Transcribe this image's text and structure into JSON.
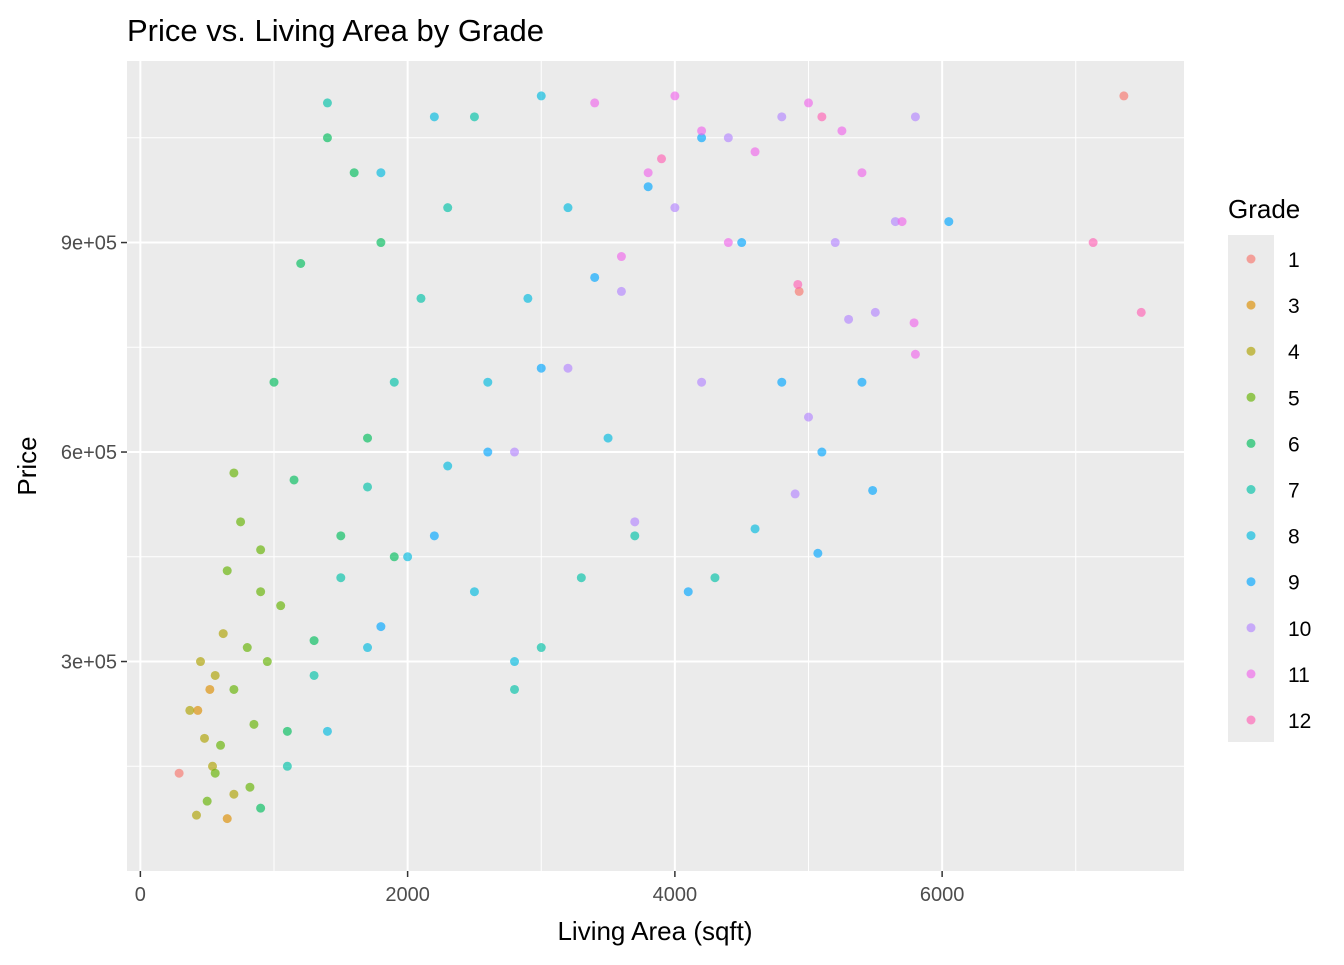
{
  "chart_data": {
    "type": "scatter",
    "title": "Price vs. Living Area by Grade",
    "xlabel": "Living Area (sqft)",
    "ylabel": "Price",
    "xlim": [
      -100,
      7810
    ],
    "ylim": [
      0,
      1160000
    ],
    "x_ticks": [
      0,
      2000,
      4000,
      6000
    ],
    "x_tick_labels": [
      "0",
      "2000",
      "4000",
      "6000"
    ],
    "y_ticks": [
      300000,
      600000,
      900000
    ],
    "y_tick_labels": [
      "3e+05",
      "6e+05",
      "9e+05"
    ],
    "grid": true,
    "legend": {
      "title": "Grade",
      "position": "right",
      "entries": [
        "1",
        "3",
        "4",
        "5",
        "6",
        "7",
        "8",
        "9",
        "10",
        "11",
        "12"
      ]
    },
    "series": [
      {
        "name": "1",
        "color": "#F8766D",
        "x": [
          290,
          4930,
          7360
        ],
        "y": [
          140000,
          830000,
          1110000
        ]
      },
      {
        "name": "3",
        "color": "#DB8E00",
        "x": [
          520,
          430,
          650
        ],
        "y": [
          260000,
          230000,
          75000
        ]
      },
      {
        "name": "4",
        "color": "#AEA200",
        "x": [
          420,
          480,
          560,
          370,
          700,
          620,
          540,
          450
        ],
        "y": [
          80000,
          190000,
          280000,
          230000,
          110000,
          340000,
          150000,
          300000
        ]
      },
      {
        "name": "5",
        "color": "#64B200",
        "x": [
          500,
          600,
          700,
          800,
          900,
          650,
          750,
          850,
          950,
          1050,
          560,
          700,
          820,
          900
        ],
        "y": [
          100000,
          180000,
          260000,
          320000,
          400000,
          430000,
          500000,
          210000,
          300000,
          380000,
          140000,
          570000,
          120000,
          460000
        ]
      },
      {
        "name": "6",
        "color": "#00BD5C",
        "x": [
          900,
          1100,
          1300,
          1500,
          1700,
          1000,
          1200,
          1400,
          1600,
          1800,
          1900,
          1150
        ],
        "y": [
          90000,
          200000,
          330000,
          480000,
          620000,
          700000,
          870000,
          1050000,
          1000000,
          900000,
          450000,
          560000
        ]
      },
      {
        "name": "7",
        "color": "#00C1A7",
        "x": [
          1100,
          1300,
          1500,
          1700,
          1900,
          2100,
          2300,
          2500,
          1400,
          2800,
          3000,
          3300,
          4300,
          3700
        ],
        "y": [
          150000,
          280000,
          420000,
          550000,
          700000,
          820000,
          950000,
          1080000,
          1100000,
          260000,
          320000,
          420000,
          420000,
          480000
        ]
      },
      {
        "name": "8",
        "color": "#00BADE",
        "x": [
          1400,
          1700,
          2000,
          2300,
          2600,
          2900,
          3200,
          1800,
          2200,
          2500,
          2800,
          3000,
          3500,
          4600
        ],
        "y": [
          200000,
          320000,
          450000,
          580000,
          700000,
          820000,
          950000,
          1000000,
          1080000,
          400000,
          300000,
          1110000,
          620000,
          490000
        ]
      },
      {
        "name": "9",
        "color": "#00A6FF",
        "x": [
          1800,
          2200,
          2600,
          3000,
          3400,
          3800,
          4200,
          4500,
          4800,
          5100,
          5480,
          6050,
          5070,
          4100,
          5400
        ],
        "y": [
          350000,
          480000,
          600000,
          720000,
          850000,
          980000,
          1050000,
          900000,
          700000,
          600000,
          545000,
          930000,
          455000,
          400000,
          700000
        ]
      },
      {
        "name": "10",
        "color": "#B385FF",
        "x": [
          2800,
          3200,
          3600,
          4000,
          4400,
          4800,
          5200,
          5500,
          5800,
          4200,
          3700,
          5000,
          5300,
          5650,
          4900
        ],
        "y": [
          600000,
          720000,
          830000,
          950000,
          1050000,
          1080000,
          900000,
          800000,
          1080000,
          700000,
          500000,
          650000,
          790000,
          930000,
          540000
        ]
      },
      {
        "name": "11",
        "color": "#EF67EB",
        "x": [
          3400,
          3800,
          4200,
          4600,
          5000,
          5400,
          5800,
          4000,
          4400,
          3600,
          5250,
          5700,
          5790
        ],
        "y": [
          1100000,
          1000000,
          1060000,
          1030000,
          1100000,
          1000000,
          740000,
          1110000,
          900000,
          880000,
          1060000,
          930000,
          785000
        ]
      },
      {
        "name": "12",
        "color": "#FF63B6",
        "x": [
          7130,
          7490,
          4920,
          5100,
          3900
        ],
        "y": [
          900000,
          800000,
          840000,
          1080000,
          1020000
        ]
      }
    ]
  }
}
